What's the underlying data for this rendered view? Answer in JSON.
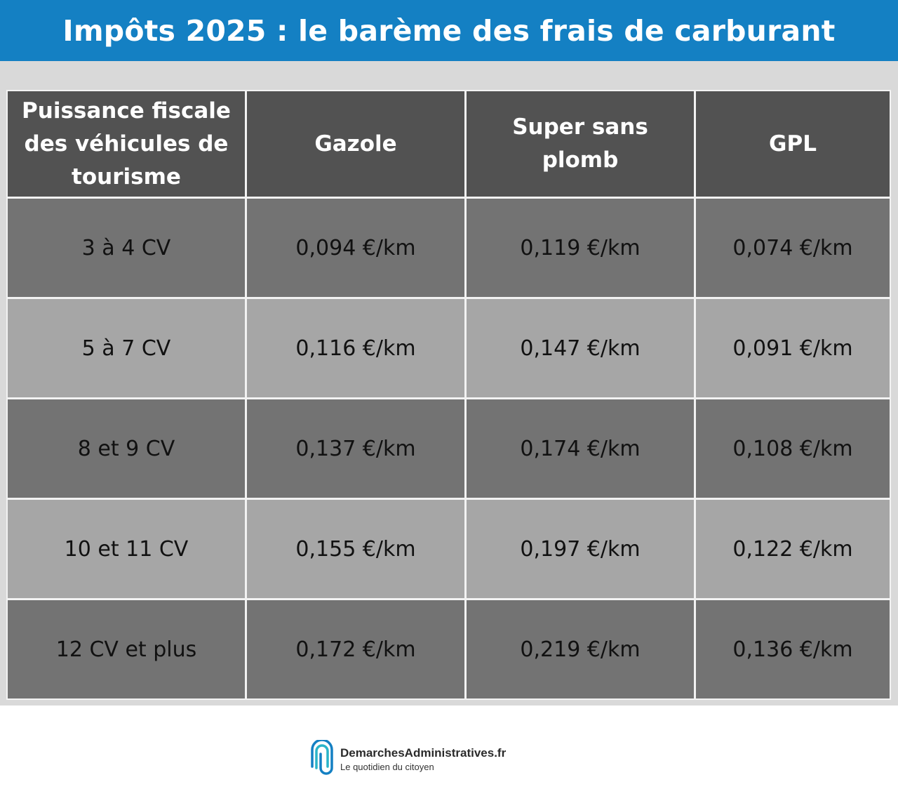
{
  "title": "Impôts 2025 : le barème des frais de carburant",
  "table": {
    "headers": [
      "Puissance fiscale des véhicules de tourisme",
      "Gazole",
      "Super sans plomb",
      "GPL"
    ],
    "rows": [
      [
        "3 à 4 CV",
        "0,094 €/km",
        "0,119 €/km",
        "0,074 €/km"
      ],
      [
        "5 à 7 CV",
        "0,116 €/km",
        "0,147 €/km",
        "0,091 €/km"
      ],
      [
        "8 et 9 CV",
        "0,137 €/km",
        "0,174 €/km",
        "0,108 €/km"
      ],
      [
        "10 et 11 CV",
        "0,155 €/km",
        "0,197 €/km",
        "0,122 €/km"
      ],
      [
        "12 CV et plus",
        "0,172 €/km",
        "0,219 €/km",
        "0,136 €/km"
      ]
    ]
  },
  "footer": {
    "brand": "DemarchesAdministratives.fr",
    "tagline": "Le quotidien du citoyen",
    "logo_icon": "paperclip-logo-icon"
  },
  "colors": {
    "title_bar": "#1480c3",
    "header_cell": "#525252",
    "row_dark": "#737373",
    "row_light": "#a6a6a6",
    "background_band": "#d9d9d9"
  }
}
